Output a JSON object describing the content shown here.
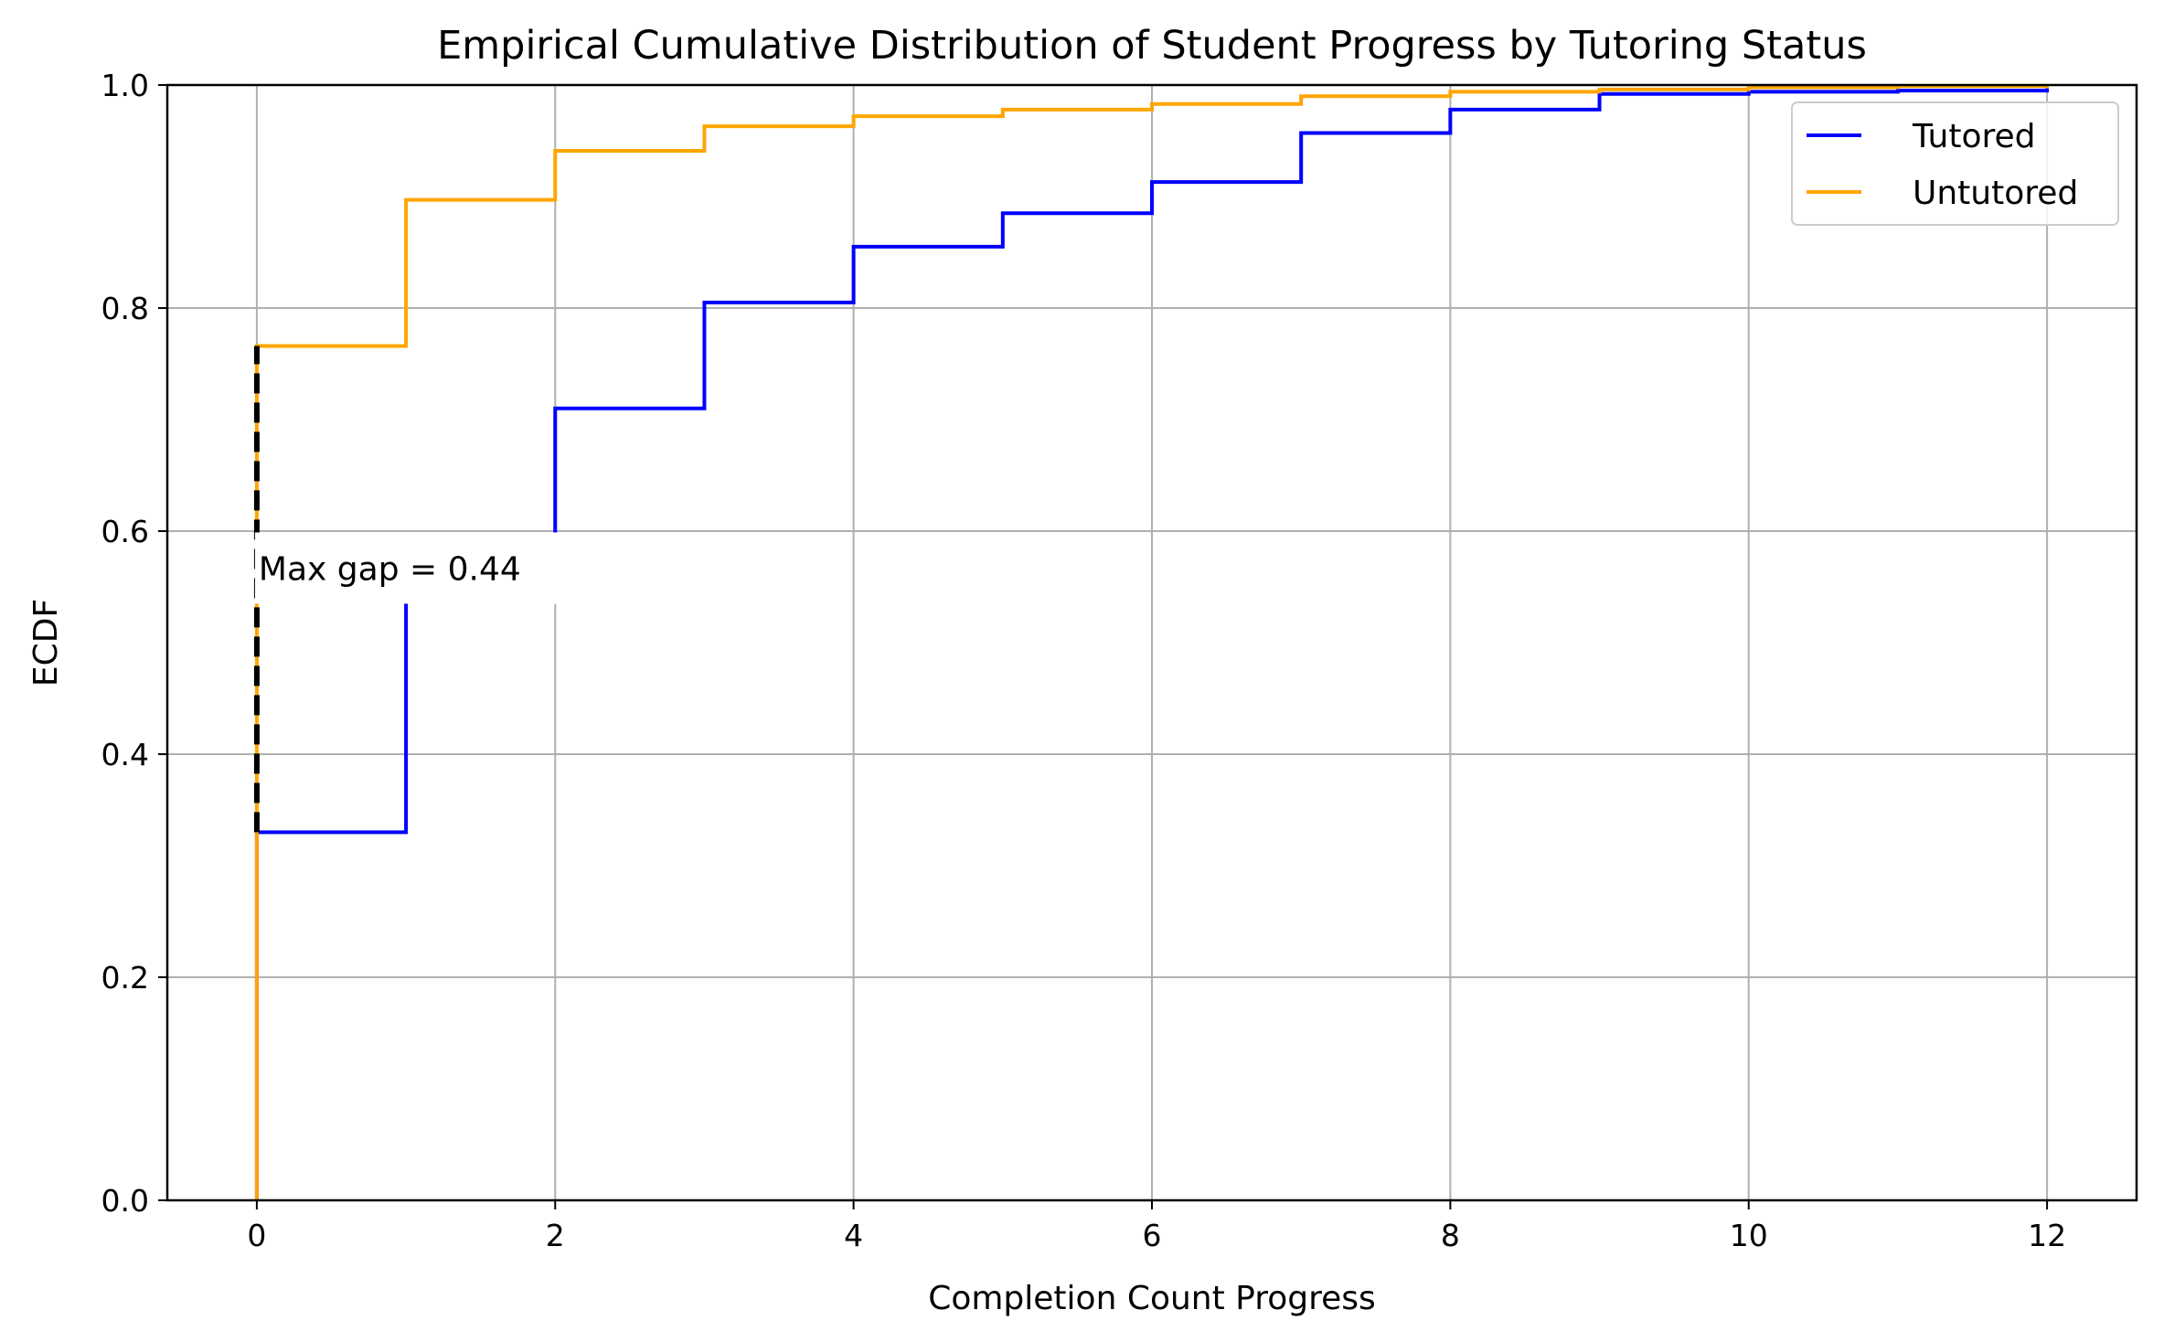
{
  "chart_data": {
    "type": "line",
    "step": "post",
    "title": "Empirical Cumulative Distribution of Student Progress by Tutoring Status",
    "xlabel": "Completion Count Progress",
    "ylabel": "ECDF",
    "xlim": [
      -0.6,
      12.6
    ],
    "ylim": [
      0,
      1
    ],
    "xticks": [
      0,
      2,
      4,
      6,
      8,
      10,
      12
    ],
    "xtick_labels": [
      "0",
      "2",
      "4",
      "6",
      "8",
      "10",
      "12"
    ],
    "yticks": [
      0,
      0.2,
      0.4,
      0.6,
      0.8,
      1.0
    ],
    "ytick_labels": [
      "0.0",
      "0.2",
      "0.4",
      "0.6",
      "0.8",
      "1.0"
    ],
    "grid": true,
    "legend": "top-right",
    "series": [
      {
        "name": "Tutored",
        "color": "#0000ff",
        "x": [
          0,
          1,
          2,
          3,
          4,
          5,
          6,
          7,
          8,
          9,
          10,
          11,
          12
        ],
        "y": [
          0.33,
          0.58,
          0.71,
          0.805,
          0.855,
          0.885,
          0.913,
          0.957,
          0.978,
          0.992,
          0.994,
          0.995,
          0.997
        ]
      },
      {
        "name": "Untutored",
        "color": "#ffa500",
        "x": [
          0,
          1,
          2,
          3,
          4,
          5,
          6,
          7,
          8,
          9,
          10,
          11,
          12
        ],
        "y": [
          0.766,
          0.897,
          0.941,
          0.963,
          0.972,
          0.978,
          0.983,
          0.99,
          0.994,
          0.996,
          0.998,
          0.999,
          1.0
        ]
      }
    ],
    "annotation": {
      "text": "Max gap = 0.44",
      "x": 0,
      "y_low": 0.33,
      "y_high": 0.766,
      "line_color": "#000000"
    }
  }
}
